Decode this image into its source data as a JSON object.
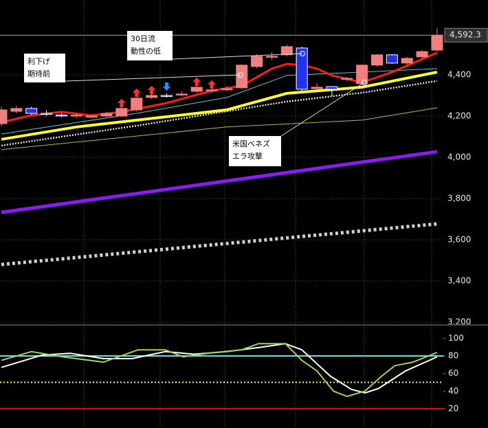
{
  "chart_data": [
    {
      "type": "candlestick",
      "ylim": [
        3200,
        4763
      ],
      "yticks": [
        {
          "value": 3200,
          "label": "3,200"
        },
        {
          "value": 3400,
          "label": "3,400"
        },
        {
          "value": 3600,
          "label": "3,600"
        },
        {
          "value": 3800,
          "label": "3,800"
        },
        {
          "value": 4000,
          "label": "4,000"
        },
        {
          "value": 4200,
          "label": "4,200"
        },
        {
          "value": 4400,
          "label": "4,400"
        }
      ],
      "grid": true,
      "up_color": "#f08080",
      "down_color": "#2233ee",
      "candles": {
        "open": [
          4163,
          4223,
          4237,
          4213,
          4205,
          4200,
          4197,
          4200,
          4200,
          4230,
          4290,
          4300,
          4303,
          4320,
          4323,
          4327,
          4337,
          4440,
          4487,
          4497,
          4530,
          4333,
          4343,
          4380,
          4357,
          4447,
          4497,
          4457,
          4487,
          4520
        ],
        "high": [
          4245,
          4250,
          4245,
          4228,
          4215,
          4212,
          4208,
          4220,
          4245,
          4290,
          4320,
          4310,
          4320,
          4345,
          4340,
          4345,
          4450,
          4500,
          4510,
          4547,
          4537,
          4360,
          4345,
          4390,
          4450,
          4500,
          4500,
          4487,
          4520,
          4625
        ],
        "low": [
          4150,
          4213,
          4205,
          4200,
          4195,
          4190,
          4190,
          4195,
          4195,
          4222,
          4283,
          4290,
          4295,
          4313,
          4310,
          4320,
          4330,
          4433,
          4470,
          4490,
          4320,
          4325,
          4297,
          4370,
          4350,
          4440,
          4453,
          4450,
          4480,
          4513
        ],
        "close": [
          4230,
          4237,
          4213,
          4210,
          4203,
          4205,
          4200,
          4213,
          4237,
          4287,
          4300,
          4297,
          4307,
          4340,
          4327,
          4333,
          4447,
          4490,
          4490,
          4537,
          4330,
          4340,
          4330,
          4383,
          4447,
          4497,
          4457,
          4480,
          4513,
          4592.3
        ]
      },
      "series": [
        {
          "color": "#8a1cf0",
          "width": 5,
          "dash": "",
          "x": [
            0,
            29
          ],
          "values": [
            3733,
            4027
          ]
        },
        {
          "color": "#d0d0d0",
          "width": 5,
          "dash": "4 4",
          "x": [
            0,
            29
          ],
          "values": [
            3480,
            3677
          ]
        },
        {
          "color": "#8ccf3c",
          "width": 1,
          "dash": "",
          "x": [
            0,
            15,
            24,
            29
          ],
          "values": [
            4037,
            4147,
            4180,
            4240
          ]
        },
        {
          "color": "#e0e0e0",
          "width": 2.5,
          "dash": "2 2",
          "x": [
            0,
            9,
            19,
            24,
            29
          ],
          "values": [
            4057,
            4153,
            4270,
            4313,
            4370
          ]
        },
        {
          "color": "#ffff33",
          "width": 4,
          "dash": "",
          "x": [
            0,
            5,
            9,
            15,
            19,
            24,
            29
          ],
          "values": [
            4087,
            4147,
            4180,
            4230,
            4310,
            4340,
            4413
          ]
        },
        {
          "color": "#4fd0d8",
          "width": 1,
          "dash": "",
          "x": [
            0,
            9,
            15,
            19,
            23,
            29
          ],
          "values": [
            4113,
            4213,
            4290,
            4397,
            4410,
            4430
          ]
        },
        {
          "color": "#ff1a1a",
          "width": 3,
          "dash": "",
          "x": [
            0,
            2,
            4,
            6,
            8,
            11,
            14,
            16,
            18,
            19,
            20,
            21,
            22,
            24,
            26,
            29
          ],
          "values": [
            4170,
            4203,
            4220,
            4203,
            4220,
            4263,
            4323,
            4347,
            4430,
            4453,
            4447,
            4430,
            4397,
            4363,
            4413,
            4507
          ]
        }
      ],
      "last_price": {
        "value": 4592.3,
        "label": "4,592.3"
      },
      "annotations": [
        {
          "lines": [
            "30日流",
            "動性の低"
          ]
        },
        {
          "lines": [
            "利下げ",
            "期待前"
          ]
        },
        {
          "lines": [
            "米国ベネズ",
            "エラ攻撃"
          ]
        }
      ]
    },
    {
      "type": "line",
      "ylim": [
        -2,
        113
      ],
      "yticks": [
        20,
        40,
        60,
        80,
        100
      ],
      "hlines": [
        {
          "value": 80,
          "color": "#7fe0e0",
          "dash": ""
        },
        {
          "value": 50,
          "color": "#ffff33",
          "dash": "2 3"
        },
        {
          "value": 20,
          "color": "#e01010",
          "dash": ""
        }
      ],
      "series": [
        {
          "color": "#ffffff",
          "x": [
            0,
            2.7,
            4.6,
            6.8,
            8.7,
            10.9,
            12.8,
            15,
            17.3,
            18.9,
            20,
            21.9,
            23.3,
            24.2,
            25.1,
            26.9,
            29
          ],
          "values": [
            67,
            81,
            83,
            77,
            77,
            85,
            82,
            85,
            90,
            94,
            87,
            57,
            42,
            38,
            43,
            63,
            79
          ]
        },
        {
          "color": "#9ad65a",
          "x": [
            0,
            2,
            4.1,
            6.8,
            9.1,
            10.9,
            12.1,
            13.7,
            16,
            17.1,
            18.9,
            20,
            21,
            22.1,
            23,
            24.2,
            25.3,
            26.2,
            27.4,
            29
          ],
          "values": [
            75,
            85,
            79,
            73,
            87,
            87,
            79,
            83,
            87,
            94,
            94,
            75,
            63,
            40,
            34,
            40,
            57,
            69,
            73,
            84
          ]
        }
      ]
    }
  ]
}
